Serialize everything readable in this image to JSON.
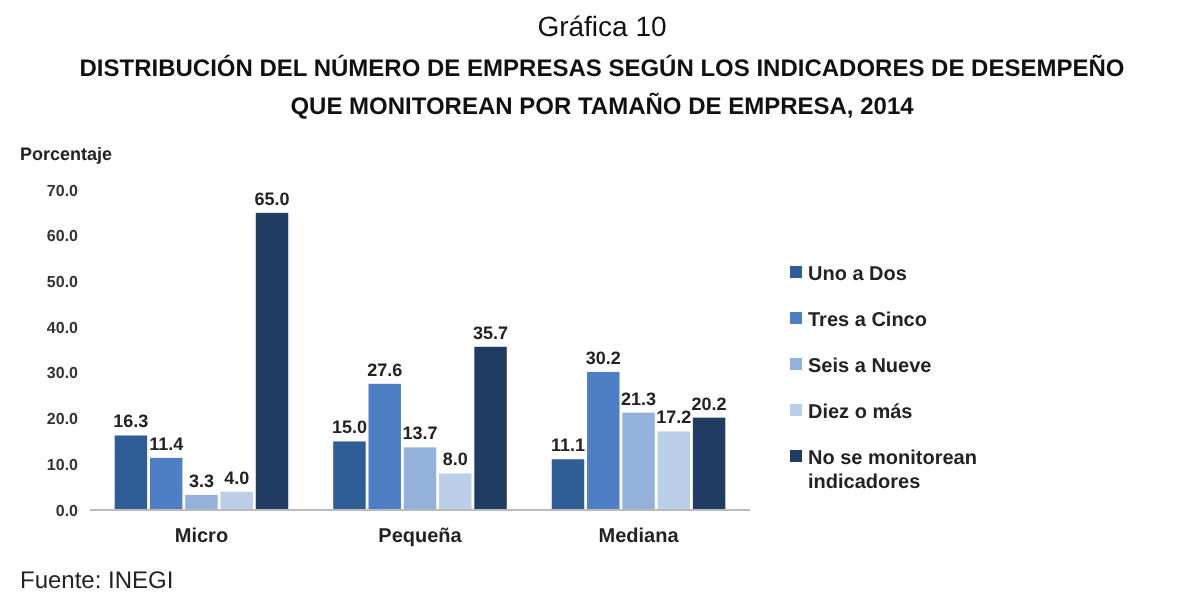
{
  "chart_data": {
    "type": "bar",
    "title": "Gráfica 10",
    "subtitle": "DISTRIBUCIÓN DEL NÚMERO DE EMPRESAS SEGÚN LOS INDICADORES DE  DESEMPEÑO QUE MONITOREAN POR TAMAÑO DE EMPRESA, 2014",
    "ylabel": "Porcentaje",
    "categories": [
      "Micro",
      "Pequeña",
      "Mediana"
    ],
    "series": [
      {
        "name": "Uno a Dos",
        "color": "#2f5d95",
        "values": [
          16.3,
          15.0,
          11.1
        ],
        "value_labels": [
          "16.3",
          "15.0",
          "11.1"
        ]
      },
      {
        "name": "Tres a Cinco",
        "color": "#4e7fc4",
        "values": [
          11.4,
          27.6,
          30.2
        ],
        "value_labels": [
          "11.4",
          "27.6",
          "30.2"
        ]
      },
      {
        "name": "Seis a Nueve",
        "color": "#94b1dc",
        "values": [
          3.3,
          13.7,
          21.3
        ],
        "value_labels": [
          "3.3",
          "13.7",
          "21.3"
        ]
      },
      {
        "name": "Diez o más",
        "color": "#bccfe9",
        "values": [
          4.0,
          8.0,
          17.2
        ],
        "value_labels": [
          "4.0",
          "8.0",
          "17.2"
        ]
      },
      {
        "name": "No se monitorean indicadores",
        "color": "#203c62",
        "values": [
          65.0,
          35.7,
          20.2
        ],
        "value_labels": [
          "65.0",
          "35.7",
          "20.2"
        ]
      }
    ],
    "ylim": [
      0,
      70
    ],
    "yticks": [
      {
        "value": 0,
        "label": "0.0"
      },
      {
        "value": 10,
        "label": "10.0"
      },
      {
        "value": 20,
        "label": "20.0"
      },
      {
        "value": 30,
        "label": "30.0"
      },
      {
        "value": 40,
        "label": "40.0"
      },
      {
        "value": 50,
        "label": "50.0"
      },
      {
        "value": 60,
        "label": "60.0"
      },
      {
        "value": 70,
        "label": "70.0"
      }
    ],
    "grid": false,
    "legend": "right",
    "annotations": [
      "Fuente: INEGI"
    ]
  }
}
